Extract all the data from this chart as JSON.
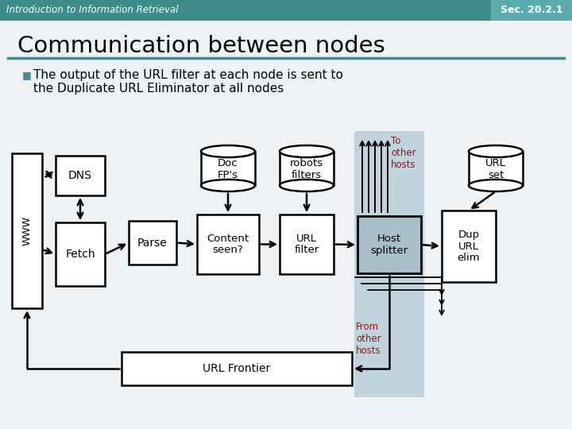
{
  "title": "Communication between nodes",
  "header_text": "Introduction to Information Retrieval",
  "sec_text": "Sec. 20.2.1",
  "header_color": "#3d8b8b",
  "sec_bg_color": "#5aabab",
  "bullet_text_line1": "The output of the URL filter at each node is sent to",
  "bullet_text_line2": "the Duplicate URL Eliminator at all nodes",
  "bg_color": "#eef2f5",
  "box_facecolor": "white",
  "box_edgecolor": "black",
  "host_splitter_col_color": "#c0d4de",
  "host_splitter_box_color": "#a8bec8",
  "red_text_color": "#8b1a1a",
  "lw": 1.8
}
